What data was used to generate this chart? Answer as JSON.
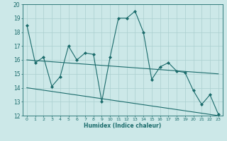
{
  "title": "",
  "xlabel": "Humidex (Indice chaleur)",
  "xlim": [
    -0.5,
    23.5
  ],
  "ylim": [
    12,
    20
  ],
  "yticks": [
    12,
    13,
    14,
    15,
    16,
    17,
    18,
    19,
    20
  ],
  "xticks": [
    0,
    1,
    2,
    3,
    4,
    5,
    6,
    7,
    8,
    9,
    10,
    11,
    12,
    13,
    14,
    15,
    16,
    17,
    18,
    19,
    20,
    21,
    22,
    23
  ],
  "bg_color": "#cce8e8",
  "line_color": "#1a6b6b",
  "grid_color": "#aacfcf",
  "line1_x": [
    0,
    1,
    2,
    3,
    4,
    5,
    6,
    7,
    8,
    9,
    10,
    11,
    12,
    13,
    14,
    15,
    16,
    17,
    18,
    19,
    20,
    21,
    22,
    23
  ],
  "line1_y": [
    18.5,
    15.8,
    16.2,
    14.1,
    14.8,
    17.0,
    16.0,
    16.5,
    16.4,
    13.0,
    16.2,
    19.0,
    19.0,
    19.5,
    18.0,
    14.6,
    15.5,
    15.8,
    15.2,
    15.1,
    13.8,
    12.8,
    13.5,
    12.1
  ],
  "line2_x": [
    0,
    23
  ],
  "line2_y": [
    16.0,
    15.0
  ],
  "line3_x": [
    0,
    23
  ],
  "line3_y": [
    14.0,
    12.0
  ]
}
